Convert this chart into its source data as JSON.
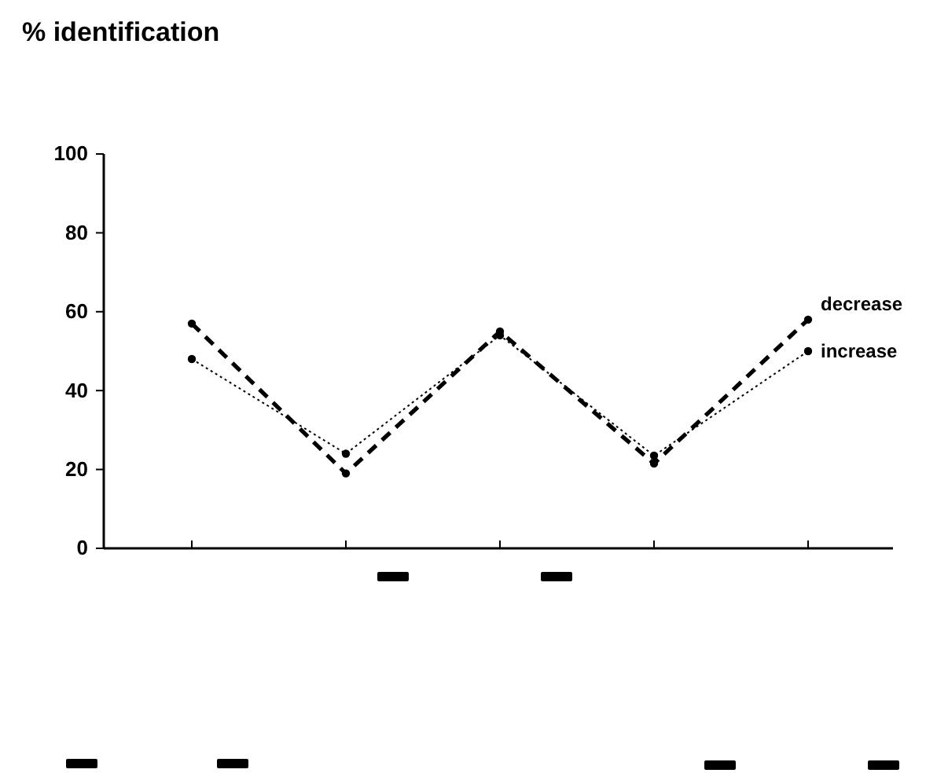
{
  "chart_data": {
    "type": "line",
    "ylabel": "% identification",
    "categories": [
      null,
      null,
      null,
      null,
      null
    ],
    "series": [
      {
        "name": "decrease",
        "color": "#000000",
        "line_style": "dashed",
        "values": [
          57,
          19,
          55,
          21.5,
          58
        ]
      },
      {
        "name": "increase",
        "color": "#000000",
        "line_style": "dotted",
        "values": [
          48,
          24,
          54,
          23.5,
          50
        ]
      }
    ],
    "ylim": [
      0,
      100
    ],
    "yticks": [
      0,
      20,
      40,
      60,
      80,
      100
    ],
    "marker": "circle",
    "grid": false,
    "legend": false
  }
}
